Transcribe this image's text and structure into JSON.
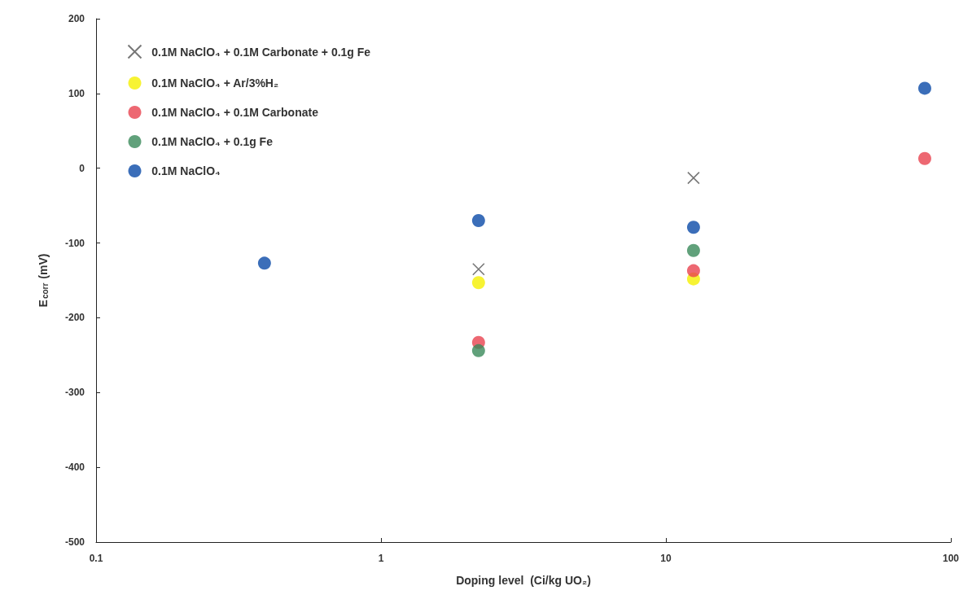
{
  "chart_data": {
    "type": "scatter",
    "xlabel": "Doping level  (Ci/kg UO₂)",
    "ylabel": "E$_{corr}$ (mV)",
    "log": "x",
    "xlim": [
      0.1,
      100
    ],
    "xticks": [
      0.1,
      1,
      10,
      100
    ],
    "ylim": [
      -500,
      200
    ],
    "yticks": [
      -500,
      -400,
      -300,
      -200,
      -100,
      0,
      100,
      200
    ],
    "grid": false,
    "legend": "top left",
    "series": [
      {
        "name": "0.1M NaClO₄ + 0.1M Carbonate + 0.1g Fe",
        "color": "#555555",
        "marker": "cross",
        "x": [
          2.2,
          12.5
        ],
        "values": [
          -135,
          -13
        ]
      },
      {
        "name": "0.1M NaClO₄ + Ar/3%H₂",
        "color": "#f5f000",
        "marker": "circle",
        "x": [
          2.2,
          12.5
        ],
        "values": [
          -153,
          -148
        ]
      },
      {
        "name": "0.1M NaClO₄ + 0.1M Carbonate",
        "color": "#e8424f",
        "marker": "circle",
        "x": [
          2.2,
          12.5,
          81
        ],
        "values": [
          -233,
          -137,
          13
        ]
      },
      {
        "name": "0.1M NaClO₄ + 0.1g Fe",
        "color": "#3a8a5a",
        "marker": "circle",
        "x": [
          2.2,
          12.5
        ],
        "values": [
          -244,
          -110
        ]
      },
      {
        "name": "0.1M NaClO₄",
        "color": "#0a4aa8",
        "marker": "circle",
        "x": [
          0.39,
          2.2,
          12.5,
          81
        ],
        "values": [
          -127,
          -70,
          -79,
          107
        ]
      }
    ]
  }
}
